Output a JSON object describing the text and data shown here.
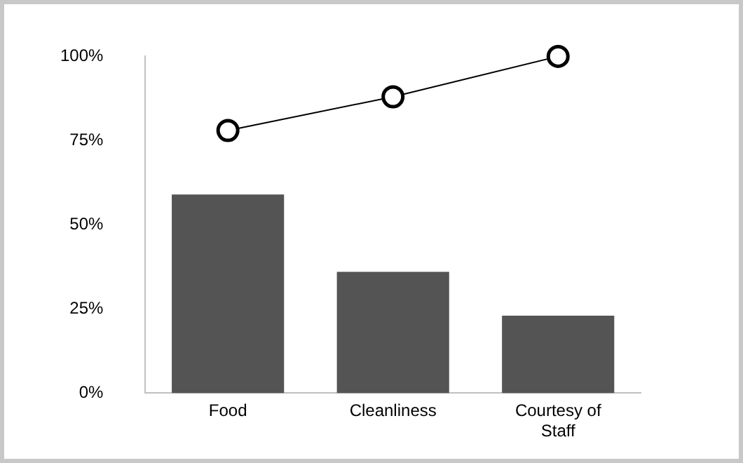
{
  "chart_data": {
    "type": "bar",
    "categories": [
      "Food",
      "Cleanliness",
      "Courtesy of Staff"
    ],
    "series": [
      {
        "color": "#545454",
        "values": [
          59,
          36,
          23
        ]
      },
      {
        "type": "line",
        "color": "#000000",
        "values": [
          78,
          88,
          100
        ],
        "marker": "circle"
      }
    ],
    "ylim": [
      0,
      100
    ],
    "yticks": [
      {
        "value": 0,
        "label": "0%"
      },
      {
        "value": 25,
        "label": "25%"
      },
      {
        "value": 50,
        "label": "50%"
      },
      {
        "value": 75,
        "label": "75%"
      },
      {
        "value": 100,
        "label": "100%"
      }
    ],
    "grid": false,
    "legend": false
  }
}
